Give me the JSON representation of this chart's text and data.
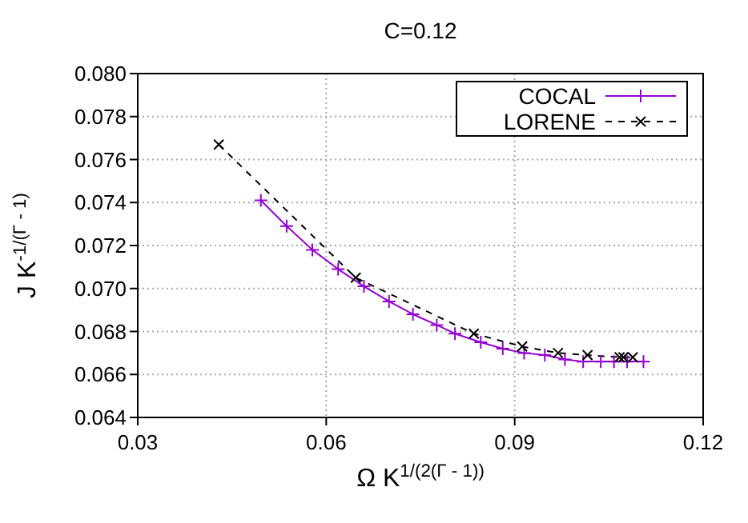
{
  "chart_data": {
    "type": "line",
    "title": "C=0.12",
    "xlabel": "Ω K$^{1/(2(Γ - 1))}$",
    "ylabel": "J K$^{-1/(Γ - 1)}$",
    "xlim": [
      0.03,
      0.12
    ],
    "xticks": [
      0.03,
      0.06,
      0.09,
      0.12
    ],
    "ylim": [
      0.064,
      0.08
    ],
    "yticks": [
      0.064,
      0.066,
      0.068,
      {
        "value": 0.07,
        "label": "0.070"
      },
      0.072,
      0.074,
      0.076,
      0.078,
      {
        "value": 0.08,
        "label": "0.080"
      }
    ],
    "grid": true,
    "legend": "top right",
    "series": [
      {
        "name": "COCAL",
        "color": "#9400d3",
        "marker": "cross",
        "line_style": "solid",
        "x": [
          0.0496,
          0.0537,
          0.0578,
          0.0619,
          0.066,
          0.07,
          0.0738,
          0.0776,
          0.0805,
          0.0846,
          0.0881,
          0.0915,
          0.0948,
          0.098,
          0.1009,
          0.1037,
          0.1058,
          0.1079,
          0.1105
        ],
        "values": [
          0.0741,
          0.0729,
          0.0718,
          0.0709,
          0.0701,
          0.0694,
          0.0688,
          0.0683,
          0.0679,
          0.0675,
          0.0672,
          0.067,
          0.0669,
          0.0667,
          0.0666,
          0.0666,
          0.0666,
          0.0666,
          0.0666
        ]
      },
      {
        "name": "LORENE",
        "color": "#000000",
        "marker": "x",
        "line_style": "dashed",
        "x": [
          0.0429,
          0.0647,
          0.0835,
          0.0912,
          0.0969,
          0.1016,
          0.1067,
          0.1073,
          0.1088
        ],
        "values": [
          0.0767,
          0.0705,
          0.0679,
          0.0673,
          0.067,
          0.0669,
          0.0668,
          0.0668,
          0.0668
        ]
      }
    ]
  }
}
